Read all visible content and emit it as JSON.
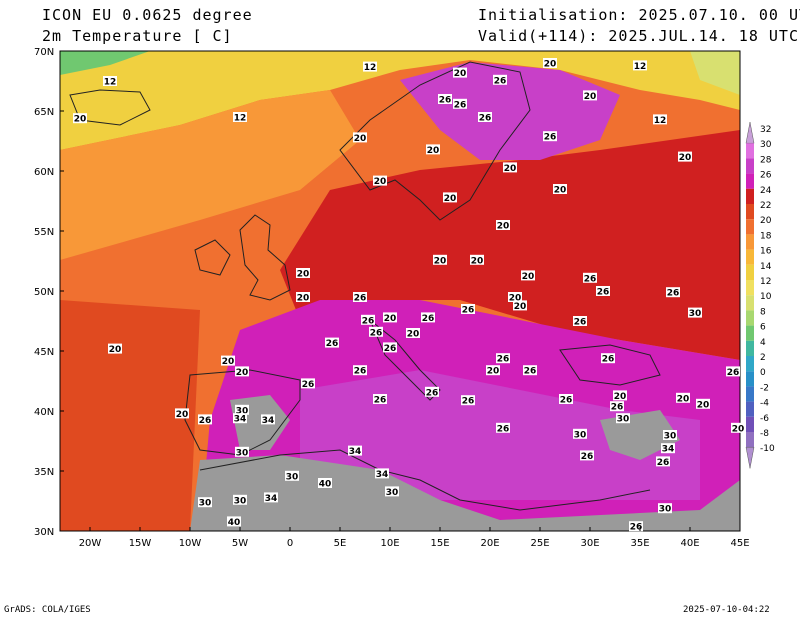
{
  "header": {
    "model": "ICON EU 0.0625 degree",
    "variable": "2m Temperature [ C]",
    "init": "Initialisation: 2025.07.10. 00 UTC",
    "valid": "Valid(+114): 2025.JUL.14. 18 UTC"
  },
  "footer": {
    "left": "GrADS: COLA/IGES",
    "right": "2025-07-10-04:22"
  },
  "axes": {
    "lat_labels": [
      "70N",
      "65N",
      "60N",
      "55N",
      "50N",
      "45N",
      "40N",
      "35N",
      "30N"
    ],
    "lon_labels": [
      "20W",
      "15W",
      "10W",
      "5W",
      "0",
      "5E",
      "10E",
      "15E",
      "20E",
      "25E",
      "30E",
      "35E",
      "40E",
      "45E"
    ]
  },
  "legend": {
    "levels": [
      "32",
      "30",
      "28",
      "26",
      "24",
      "22",
      "20",
      "18",
      "16",
      "14",
      "12",
      "10",
      "8",
      "6",
      "4",
      "2",
      "0",
      "-2",
      "-4",
      "-6",
      "-8",
      "-10"
    ],
    "colors": [
      "#c8a0d8",
      "#e070e0",
      "#c840c8",
      "#d020b8",
      "#d02020",
      "#e04a20",
      "#f07030",
      "#f89838",
      "#f8b838",
      "#f0d040",
      "#f0e060",
      "#d8e070",
      "#a8d870",
      "#70c870",
      "#40b8a0",
      "#30a8c8",
      "#2890c8",
      "#3878c8",
      "#5060c0",
      "#7050b8",
      "#9070c0",
      "#b090d0"
    ]
  },
  "contour_labels": [
    {
      "text": "12",
      "lon": -18,
      "lat": 67.5
    },
    {
      "text": "20",
      "lon": -21,
      "lat": 64.4
    },
    {
      "text": "12",
      "lon": -5,
      "lat": 64.5
    },
    {
      "text": "12",
      "lon": 8,
      "lat": 68.7
    },
    {
      "text": "20",
      "lon": 17,
      "lat": 68.2
    },
    {
      "text": "26",
      "lon": 21,
      "lat": 67.6
    },
    {
      "text": "20",
      "lon": 26,
      "lat": 69
    },
    {
      "text": "12",
      "lon": 35,
      "lat": 68.8
    },
    {
      "text": "20",
      "lon": 30,
      "lat": 66.3
    },
    {
      "text": "26",
      "lon": 15.5,
      "lat": 66
    },
    {
      "text": "26",
      "lon": 17,
      "lat": 65.6
    },
    {
      "text": "26",
      "lon": 19.5,
      "lat": 64.5
    },
    {
      "text": "12",
      "lon": 37,
      "lat": 64.3
    },
    {
      "text": "20",
      "lon": 7,
      "lat": 62.8
    },
    {
      "text": "26",
      "lon": 26,
      "lat": 62.9
    },
    {
      "text": "20",
      "lon": 14.3,
      "lat": 61.8
    },
    {
      "text": "20",
      "lon": 39.5,
      "lat": 61.2
    },
    {
      "text": "20",
      "lon": 22,
      "lat": 60.3
    },
    {
      "text": "20",
      "lon": 9,
      "lat": 59.2
    },
    {
      "text": "20",
      "lon": 27,
      "lat": 58.5
    },
    {
      "text": "20",
      "lon": 16,
      "lat": 57.8
    },
    {
      "text": "20",
      "lon": 21.3,
      "lat": 55.5
    },
    {
      "text": "20",
      "lon": 1.3,
      "lat": 51.5
    },
    {
      "text": "20",
      "lon": 15,
      "lat": 52.6
    },
    {
      "text": "20",
      "lon": 18.7,
      "lat": 52.6
    },
    {
      "text": "20",
      "lon": 23.8,
      "lat": 51.3
    },
    {
      "text": "26",
      "lon": 30,
      "lat": 51.1
    },
    {
      "text": "26",
      "lon": 31.3,
      "lat": 50
    },
    {
      "text": "26",
      "lon": 38.3,
      "lat": 49.9
    },
    {
      "text": "20",
      "lon": 1.3,
      "lat": 49.5
    },
    {
      "text": "26",
      "lon": 7,
      "lat": 49.5
    },
    {
      "text": "20",
      "lon": 22.5,
      "lat": 49.5
    },
    {
      "text": "20",
      "lon": 23,
      "lat": 48.8
    },
    {
      "text": "26",
      "lon": 17.8,
      "lat": 48.5
    },
    {
      "text": "30",
      "lon": 40.5,
      "lat": 48.2
    },
    {
      "text": "26",
      "lon": 7.8,
      "lat": 47.6
    },
    {
      "text": "20",
      "lon": 10,
      "lat": 47.8
    },
    {
      "text": "26",
      "lon": 13.8,
      "lat": 47.8
    },
    {
      "text": "26",
      "lon": 29,
      "lat": 47.5
    },
    {
      "text": "26",
      "lon": 8.6,
      "lat": 46.6
    },
    {
      "text": "20",
      "lon": 12.3,
      "lat": 46.5
    },
    {
      "text": "26",
      "lon": 4.2,
      "lat": 45.7
    },
    {
      "text": "26",
      "lon": 10,
      "lat": 45.3
    },
    {
      "text": "20",
      "lon": -17.5,
      "lat": 45.2
    },
    {
      "text": "26",
      "lon": 21.3,
      "lat": 44.4
    },
    {
      "text": "26",
      "lon": 31.8,
      "lat": 44.4
    },
    {
      "text": "20",
      "lon": -6.2,
      "lat": 44.2
    },
    {
      "text": "20",
      "lon": 20.3,
      "lat": 43.4
    },
    {
      "text": "26",
      "lon": 24,
      "lat": 43.4
    },
    {
      "text": "26",
      "lon": 7,
      "lat": 43.4
    },
    {
      "text": "26",
      "lon": 44.3,
      "lat": 43.3
    },
    {
      "text": "20",
      "lon": -4.8,
      "lat": 43.3
    },
    {
      "text": "26",
      "lon": 1.8,
      "lat": 42.3
    },
    {
      "text": "26",
      "lon": 14.2,
      "lat": 41.6
    },
    {
      "text": "20",
      "lon": 33,
      "lat": 41.3
    },
    {
      "text": "20",
      "lon": 39.3,
      "lat": 41.1
    },
    {
      "text": "26",
      "lon": 9,
      "lat": 41
    },
    {
      "text": "26",
      "lon": 17.8,
      "lat": 40.9
    },
    {
      "text": "26",
      "lon": 27.6,
      "lat": 41
    },
    {
      "text": "20",
      "lon": 41.3,
      "lat": 40.6
    },
    {
      "text": "26",
      "lon": 32.7,
      "lat": 40.4
    },
    {
      "text": "20",
      "lon": -10.8,
      "lat": 39.8
    },
    {
      "text": "30",
      "lon": -4.8,
      "lat": 40.1
    },
    {
      "text": "26",
      "lon": -8.5,
      "lat": 39.3
    },
    {
      "text": "34",
      "lon": -5,
      "lat": 39.4
    },
    {
      "text": "34",
      "lon": -2.2,
      "lat": 39.3
    },
    {
      "text": "30",
      "lon": 33.3,
      "lat": 39.4
    },
    {
      "text": "20",
      "lon": 44.8,
      "lat": 38.6
    },
    {
      "text": "26",
      "lon": 21.3,
      "lat": 38.6
    },
    {
      "text": "30",
      "lon": 29,
      "lat": 38.1
    },
    {
      "text": "30",
      "lon": 38,
      "lat": 38
    },
    {
      "text": "34",
      "lon": 37.8,
      "lat": 36.9
    },
    {
      "text": "30",
      "lon": -4.8,
      "lat": 36.6
    },
    {
      "text": "34",
      "lon": 6.5,
      "lat": 36.7
    },
    {
      "text": "26",
      "lon": 29.7,
      "lat": 36.3
    },
    {
      "text": "26",
      "lon": 37.3,
      "lat": 35.8
    },
    {
      "text": "30",
      "lon": 0.2,
      "lat": 34.6
    },
    {
      "text": "34",
      "lon": 9.2,
      "lat": 34.8
    },
    {
      "text": "40",
      "lon": 3.5,
      "lat": 34
    },
    {
      "text": "30",
      "lon": 10.2,
      "lat": 33.3
    },
    {
      "text": "30",
      "lon": -8.5,
      "lat": 32.4
    },
    {
      "text": "30",
      "lon": -5,
      "lat": 32.6
    },
    {
      "text": "34",
      "lon": -1.9,
      "lat": 32.8
    },
    {
      "text": "30",
      "lon": 37.5,
      "lat": 31.9
    },
    {
      "text": "40",
      "lon": -5.6,
      "lat": 30.8
    },
    {
      "text": "26",
      "lon": 34.6,
      "lat": 30.4
    }
  ]
}
